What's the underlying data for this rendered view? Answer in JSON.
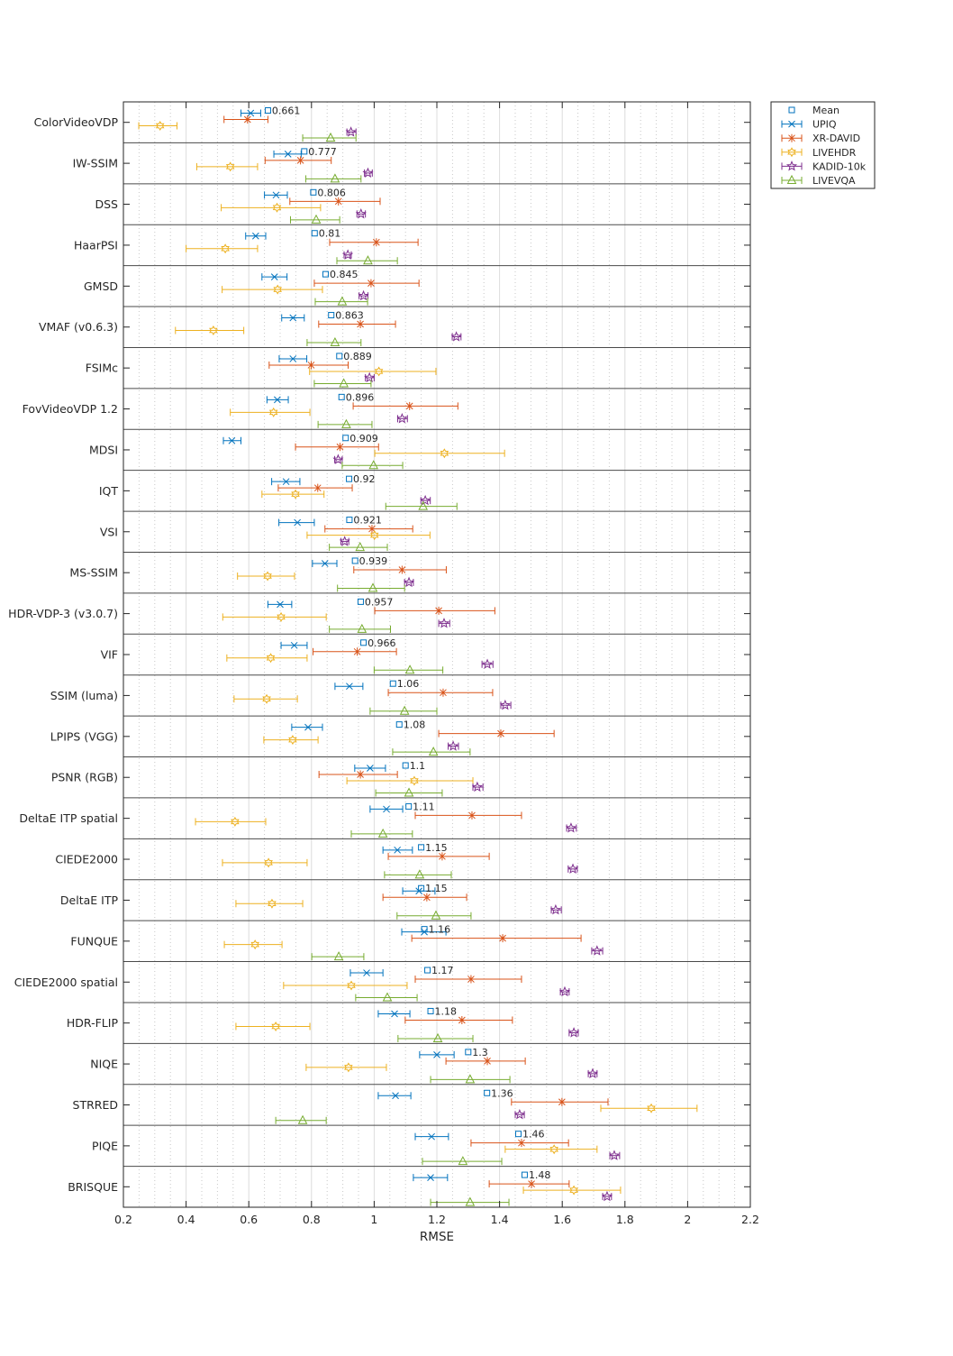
{
  "chart_data": {
    "type": "errorbar-dot",
    "xlabel": "RMSE",
    "xlim": [
      0.2,
      2.2
    ],
    "xticks": [
      "0.2",
      "0.4",
      "0.6",
      "0.8",
      "1",
      "1.2",
      "1.4",
      "1.6",
      "1.8",
      "2",
      "2.2"
    ],
    "grid": "major solid, minor dotted",
    "legend_position": "outside top-right",
    "mean_label": "Mean",
    "series": [
      {
        "name": "UPIQ",
        "color": "#0072BD",
        "marker": "x"
      },
      {
        "name": "XR-DAVID",
        "color": "#D95319",
        "marker": "asterisk"
      },
      {
        "name": "LIVEHDR",
        "color": "#EDB120",
        "marker": "hexagram"
      },
      {
        "name": "KADID-10k",
        "color": "#7E2F8E",
        "marker": "pentagram"
      },
      {
        "name": "LIVEVQA",
        "color": "#77AC30",
        "marker": "triangle"
      }
    ],
    "value_format": "[value, ci_low, ci_high] per series in series order",
    "rows": [
      {
        "name": "ColorVideoVDP",
        "mean": "0.661",
        "values": [
          [
            0.606,
            0.575,
            0.638
          ],
          [
            0.596,
            0.521,
            0.661
          ],
          [
            0.317,
            0.249,
            0.371
          ],
          [
            0.926,
            0.913,
            0.942
          ],
          [
            0.861,
            0.772,
            0.942
          ]
        ]
      },
      {
        "name": "IW-SSIM",
        "mean": "0.777",
        "values": [
          [
            0.725,
            0.68,
            0.767
          ],
          [
            0.765,
            0.652,
            0.863
          ],
          [
            0.541,
            0.434,
            0.628
          ],
          [
            0.98,
            0.969,
            0.994
          ],
          [
            0.875,
            0.782,
            0.958
          ]
        ]
      },
      {
        "name": "DSS",
        "mean": "0.806",
        "values": [
          [
            0.687,
            0.65,
            0.723
          ],
          [
            0.886,
            0.731,
            1.019
          ],
          [
            0.69,
            0.512,
            0.829
          ],
          [
            0.958,
            0.945,
            0.972
          ],
          [
            0.815,
            0.733,
            0.89
          ]
        ]
      },
      {
        "name": "HaarPSI",
        "mean": "0.81",
        "values": [
          [
            0.622,
            0.59,
            0.654
          ],
          [
            1.007,
            0.858,
            1.14
          ],
          [
            0.525,
            0.4,
            0.628
          ],
          [
            0.916,
            0.904,
            0.927
          ],
          [
            0.98,
            0.881,
            1.074
          ]
        ]
      },
      {
        "name": "GMSD",
        "mean": "0.845",
        "values": [
          [
            0.682,
            0.642,
            0.722
          ],
          [
            0.99,
            0.809,
            1.143
          ],
          [
            0.692,
            0.515,
            0.835
          ],
          [
            0.966,
            0.952,
            0.98
          ],
          [
            0.898,
            0.812,
            0.979
          ]
        ]
      },
      {
        "name": "VMAF (v0.6.3)",
        "mean": "0.863",
        "values": [
          [
            0.741,
            0.705,
            0.777
          ],
          [
            0.956,
            0.823,
            1.068
          ],
          [
            0.487,
            0.366,
            0.584
          ],
          [
            1.262,
            1.249,
            1.277
          ],
          [
            0.875,
            0.786,
            0.958
          ]
        ]
      },
      {
        "name": "FSIMc",
        "mean": "0.889",
        "values": [
          [
            0.741,
            0.697,
            0.785
          ],
          [
            0.799,
            0.665,
            0.917
          ],
          [
            1.015,
            0.794,
            1.197
          ],
          [
            0.985,
            0.972,
            1.0
          ],
          [
            0.903,
            0.809,
            0.99
          ]
        ]
      },
      {
        "name": "FovVideoVDP 1.2",
        "mean": "0.896",
        "values": [
          [
            0.691,
            0.658,
            0.726
          ],
          [
            1.113,
            0.933,
            1.267
          ],
          [
            0.679,
            0.541,
            0.795
          ],
          [
            1.089,
            1.075,
            1.106
          ],
          [
            0.911,
            0.821,
            0.993
          ]
        ]
      },
      {
        "name": "MDSI",
        "mean": "0.909",
        "values": [
          [
            0.546,
            0.519,
            0.575
          ],
          [
            0.891,
            0.749,
            1.014
          ],
          [
            1.224,
            1.002,
            1.416
          ],
          [
            0.885,
            0.874,
            0.898
          ],
          [
            0.998,
            0.898,
            1.091
          ]
        ]
      },
      {
        "name": "IQT",
        "mean": "0.92",
        "values": [
          [
            0.719,
            0.673,
            0.763
          ],
          [
            0.82,
            0.694,
            0.93
          ],
          [
            0.749,
            0.642,
            0.84
          ],
          [
            1.163,
            1.149,
            1.179
          ],
          [
            1.156,
            1.037,
            1.264
          ]
        ]
      },
      {
        "name": "VSI",
        "mean": "0.921",
        "values": [
          [
            0.755,
            0.696,
            0.809
          ],
          [
            0.993,
            0.843,
            1.123
          ],
          [
            1.001,
            0.786,
            1.178
          ],
          [
            0.906,
            0.894,
            0.919
          ],
          [
            0.955,
            0.857,
            1.042
          ]
        ]
      },
      {
        "name": "MS-SSIM",
        "mean": "0.939",
        "values": [
          [
            0.843,
            0.803,
            0.881
          ],
          [
            1.089,
            0.935,
            1.23
          ],
          [
            0.66,
            0.564,
            0.746
          ],
          [
            1.111,
            1.097,
            1.125
          ],
          [
            0.996,
            0.883,
            1.097
          ]
        ]
      },
      {
        "name": "HDR-VDP-3 (v3.0.7)",
        "mean": "0.957",
        "values": [
          [
            0.7,
            0.661,
            0.737
          ],
          [
            1.206,
            1.002,
            1.385
          ],
          [
            0.703,
            0.517,
            0.847
          ],
          [
            1.223,
            1.206,
            1.241
          ],
          [
            0.961,
            0.857,
            1.052
          ]
        ]
      },
      {
        "name": "VIF",
        "mean": "0.966",
        "values": [
          [
            0.745,
            0.703,
            0.786
          ],
          [
            0.946,
            0.805,
            1.071
          ],
          [
            0.67,
            0.53,
            0.786
          ],
          [
            1.361,
            1.344,
            1.379
          ],
          [
            1.114,
            1.0,
            1.219
          ]
        ]
      },
      {
        "name": "SSIM (luma)",
        "mean": "1.06",
        "values": [
          [
            0.921,
            0.875,
            0.964
          ],
          [
            1.22,
            1.045,
            1.378
          ],
          [
            0.657,
            0.553,
            0.755
          ],
          [
            1.418,
            1.404,
            1.436
          ],
          [
            1.097,
            0.987,
            1.2
          ]
        ]
      },
      {
        "name": "LPIPS (VGG)",
        "mean": "1.08",
        "values": [
          [
            0.789,
            0.737,
            0.835
          ],
          [
            1.404,
            1.206,
            1.574
          ],
          [
            0.74,
            0.648,
            0.821
          ],
          [
            1.252,
            1.236,
            1.269
          ],
          [
            1.189,
            1.059,
            1.306
          ]
        ]
      },
      {
        "name": "PSNR (RGB)",
        "mean": "1.1",
        "values": [
          [
            0.987,
            0.938,
            1.036
          ],
          [
            0.956,
            0.824,
            1.074
          ],
          [
            1.128,
            0.913,
            1.315
          ],
          [
            1.329,
            1.315,
            1.347
          ],
          [
            1.111,
            1.005,
            1.217
          ]
        ]
      },
      {
        "name": "DeltaE ITP spatial",
        "mean": "1.11",
        "values": [
          [
            1.039,
            0.987,
            1.091
          ],
          [
            1.312,
            1.131,
            1.47
          ],
          [
            0.556,
            0.43,
            0.654
          ],
          [
            1.628,
            1.614,
            1.645
          ],
          [
            1.028,
            0.927,
            1.122
          ]
        ]
      },
      {
        "name": "CIEDE2000",
        "mean": "1.15",
        "values": [
          [
            1.074,
            1.028,
            1.122
          ],
          [
            1.217,
            1.045,
            1.367
          ],
          [
            0.663,
            0.516,
            0.786
          ],
          [
            1.634,
            1.619,
            1.648
          ],
          [
            1.145,
            1.033,
            1.246
          ]
        ]
      },
      {
        "name": "DeltaE ITP",
        "mean": "1.15",
        "values": [
          [
            1.143,
            1.091,
            1.194
          ],
          [
            1.168,
            1.028,
            1.295
          ],
          [
            0.674,
            0.559,
            0.772
          ],
          [
            1.579,
            1.565,
            1.597
          ],
          [
            1.197,
            1.073,
            1.309
          ]
        ]
      },
      {
        "name": "FUNQUE",
        "mean": "1.16",
        "values": [
          [
            1.16,
            1.088,
            1.229
          ],
          [
            1.41,
            1.12,
            1.66
          ],
          [
            0.62,
            0.522,
            0.706
          ],
          [
            1.711,
            1.694,
            1.729
          ],
          [
            0.887,
            0.801,
            0.967
          ]
        ]
      },
      {
        "name": "CIEDE2000 spatial",
        "mean": "1.17",
        "values": [
          [
            0.976,
            0.924,
            1.028
          ],
          [
            1.309,
            1.131,
            1.47
          ],
          [
            0.927,
            0.711,
            1.105
          ],
          [
            1.608,
            1.594,
            1.622
          ],
          [
            1.042,
            0.941,
            1.137
          ]
        ]
      },
      {
        "name": "HDR-FLIP",
        "mean": "1.18",
        "values": [
          [
            1.065,
            1.013,
            1.114
          ],
          [
            1.28,
            1.099,
            1.441
          ],
          [
            0.686,
            0.559,
            0.795
          ],
          [
            1.637,
            1.622,
            1.651
          ],
          [
            1.203,
            1.076,
            1.315
          ]
        ]
      },
      {
        "name": "NIQE",
        "mean": "1.3",
        "values": [
          [
            1.2,
            1.145,
            1.255
          ],
          [
            1.361,
            1.229,
            1.482
          ],
          [
            0.918,
            0.783,
            1.039
          ],
          [
            1.697,
            1.683,
            1.711
          ],
          [
            1.306,
            1.18,
            1.433
          ]
        ]
      },
      {
        "name": "STRRED",
        "mean": "1.36",
        "values": [
          [
            1.068,
            1.013,
            1.117
          ],
          [
            1.599,
            1.438,
            1.746
          ],
          [
            1.884,
            1.723,
            2.03
          ],
          [
            1.464,
            1.45,
            1.479
          ],
          [
            0.772,
            0.686,
            0.847
          ]
        ]
      },
      {
        "name": "PIQE",
        "mean": "1.46",
        "values": [
          [
            1.183,
            1.131,
            1.237
          ],
          [
            1.47,
            1.309,
            1.62
          ],
          [
            1.574,
            1.418,
            1.711
          ],
          [
            1.766,
            1.752,
            1.783
          ],
          [
            1.283,
            1.154,
            1.407
          ]
        ]
      },
      {
        "name": "BRISQUE",
        "mean": "1.48",
        "values": [
          [
            1.18,
            1.125,
            1.234
          ],
          [
            1.502,
            1.367,
            1.622
          ],
          [
            1.637,
            1.476,
            1.786
          ],
          [
            1.743,
            1.729,
            1.757
          ],
          [
            1.306,
            1.18,
            1.43
          ]
        ]
      }
    ]
  }
}
